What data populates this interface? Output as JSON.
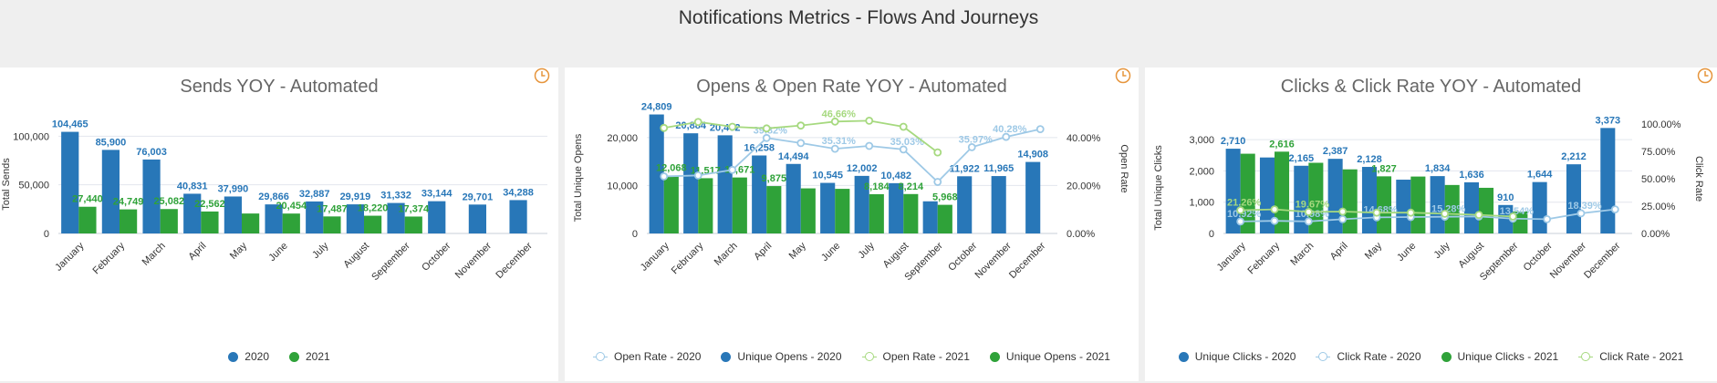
{
  "page_title": "Notifications Metrics - Flows And Journeys",
  "colors": {
    "blue": "#2877b8",
    "green": "#2fa239",
    "light_blue": "#9ec9e6",
    "light_green": "#a6d97f",
    "clock": "#e6953c",
    "grid": "#e2e6ee"
  },
  "icons": {
    "refresh": "clock-icon"
  },
  "chart_data": [
    {
      "type": "bar",
      "title": "Sends YOY - Automated",
      "categories": [
        "January",
        "February",
        "March",
        "April",
        "May",
        "June",
        "July",
        "August",
        "September",
        "October",
        "November",
        "December"
      ],
      "series": [
        {
          "name": "2020",
          "values": [
            104465,
            85900,
            76003,
            40831,
            37990,
            29866,
            32887,
            29919,
            31332,
            33144,
            29701,
            34288
          ],
          "labels": [
            "104,465",
            "85,900",
            "76,003",
            "40,831",
            "37,990",
            "29,866",
            "32,887",
            "29,919",
            "31,332",
            "33,144",
            "29,701",
            "34,288"
          ]
        },
        {
          "name": "2021",
          "values": [
            27440,
            24749,
            25082,
            22562,
            20500,
            20454,
            17487,
            18220,
            17374,
            null,
            null,
            null
          ],
          "labels": [
            "27,440",
            "24,749",
            "25,082",
            "22,562",
            "",
            "20,454",
            "17,487",
            "18,220",
            "17,374",
            "",
            "",
            ""
          ]
        }
      ],
      "ylabel": "Total Sends",
      "yticks": [
        "0",
        "50,000",
        "100,000"
      ],
      "ylim": [
        0,
        120000
      ],
      "legend": [
        "2020",
        "2021"
      ],
      "legend_position": "bottom"
    },
    {
      "type": "bar",
      "title": "Opens & Open Rate YOY - Automated",
      "categories": [
        "January",
        "February",
        "March",
        "April",
        "May",
        "June",
        "July",
        "August",
        "September",
        "October",
        "November",
        "December"
      ],
      "series": [
        {
          "name": "Unique Opens - 2020",
          "values": [
            24809,
            20884,
            20462,
            16258,
            14494,
            10545,
            12002,
            10482,
            6700,
            11922,
            11965,
            14908
          ],
          "labels": [
            "24,809",
            "20,884",
            "20,462",
            "16,258",
            "14,494",
            "10,545",
            "12,002",
            "10,482",
            "",
            "11,922",
            "11,965",
            "14,908"
          ]
        },
        {
          "name": "Unique Opens - 2021",
          "values": [
            12068,
            11517,
            11671,
            9875,
            9400,
            9300,
            8184,
            8214,
            5968,
            null,
            null,
            null
          ],
          "labels": [
            "12,068",
            "11,517",
            "11,671",
            "9,875",
            "",
            "",
            "8,184",
            "8,214",
            "5,968",
            "",
            "",
            ""
          ]
        }
      ],
      "line_series": [
        {
          "name": "Open Rate - 2020",
          "values": [
            23.8,
            24.2,
            26.5,
            39.82,
            37.7,
            35.31,
            36.5,
            35.03,
            21.5,
            35.97,
            40.28,
            43.5
          ],
          "labels": [
            "",
            "",
            "",
            "39.82%",
            "",
            "35.31%",
            "",
            "35.03%",
            "",
            "35.97%",
            "40.28%",
            ""
          ]
        },
        {
          "name": "Open Rate - 2021",
          "values": [
            44.0,
            46.5,
            44.5,
            43.8,
            45.0,
            46.66,
            47.0,
            44.5,
            33.8,
            null,
            null,
            null
          ],
          "labels": [
            "",
            "",
            "",
            "",
            "",
            "46.66%",
            "",
            "",
            "",
            "",
            "",
            ""
          ]
        }
      ],
      "ylabel": "Total Unique Opens",
      "y2label": "Open Rate",
      "yticks": [
        "0",
        "10,000",
        "20,000"
      ],
      "y2ticks": [
        "0.00%",
        "20.00%",
        "40.00%"
      ],
      "ylim": [
        0,
        27000
      ],
      "y2lim": [
        0,
        54
      ],
      "legend": [
        "Open Rate - 2020",
        "Unique Opens - 2020",
        "Open Rate - 2021",
        "Unique Opens - 2021"
      ],
      "legend_position": "bottom"
    },
    {
      "type": "bar",
      "title": "Clicks & Click Rate YOY - Automated",
      "categories": [
        "January",
        "February",
        "March",
        "April",
        "May",
        "June",
        "July",
        "August",
        "September",
        "October",
        "November",
        "December"
      ],
      "series": [
        {
          "name": "Unique Clicks - 2020",
          "values": [
            2710,
            2430,
            2165,
            2387,
            2128,
            1720,
            1834,
            1636,
            910,
            1644,
            2212,
            3373
          ],
          "labels": [
            "2,710",
            "",
            "2,165",
            "2,387",
            "2,128",
            "",
            "1,834",
            "1,636",
            "910",
            "1,644",
            "2,212",
            "3,373"
          ]
        },
        {
          "name": "Unique Clicks - 2021",
          "values": [
            2550,
            2616,
            2260,
            2050,
            1827,
            1820,
            1550,
            1460,
            700,
            null,
            null,
            null
          ],
          "labels": [
            "",
            "2,616",
            "",
            "",
            "1,827",
            "",
            "",
            "",
            "",
            "",
            "",
            ""
          ]
        }
      ],
      "line_series": [
        {
          "name": "Click Rate - 2020",
          "values": [
            10.92,
            11.5,
            10.98,
            13.0,
            14.68,
            15.0,
            15.28,
            15.5,
            13.54,
            13.0,
            18.39,
            22.0
          ],
          "labels": [
            "10.92%",
            "",
            "10.98%",
            "",
            "14.68%",
            "",
            "15.28%",
            "",
            "13.54%",
            "",
            "18.39%",
            ""
          ]
        },
        {
          "name": "Click Rate - 2021",
          "values": [
            21.26,
            22.0,
            19.67,
            20.0,
            19.0,
            19.0,
            18.0,
            17.0,
            15.5,
            null,
            null,
            null
          ],
          "labels": [
            "21.26%",
            "",
            "19.67%",
            "",
            "",
            "",
            "",
            "",
            "",
            "",
            "",
            ""
          ]
        }
      ],
      "ylabel": "Total Unique Clicks",
      "y2label": "Click Rate",
      "yticks": [
        "0",
        "1,000",
        "2,000",
        "3,000"
      ],
      "y2ticks": [
        "0.00%",
        "25.00%",
        "50.00%",
        "75.00%",
        "100.00%"
      ],
      "ylim": [
        0,
        3500
      ],
      "y2lim": [
        0,
        100
      ],
      "legend": [
        "Unique Clicks - 2020",
        "Click Rate - 2020",
        "Unique Clicks - 2021",
        "Click Rate - 2021"
      ],
      "legend_position": "bottom"
    }
  ]
}
